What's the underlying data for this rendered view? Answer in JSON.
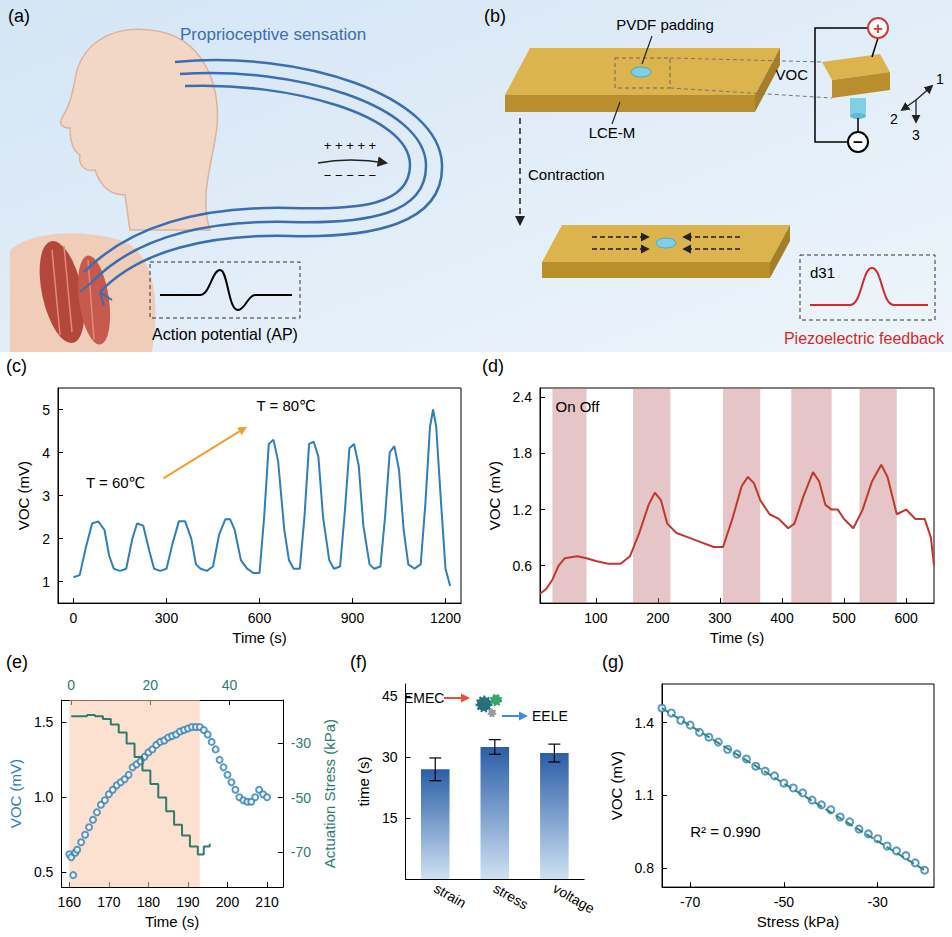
{
  "diagrams": {
    "a": {
      "label": "(a)",
      "title": "Proprioceptive sensation",
      "charges": {
        "positive": "+ + + + +",
        "negative": "− − − − −"
      },
      "signal_label": "Action potential (AP)"
    },
    "b": {
      "label": "(b)",
      "pad_label": "PVDF padding",
      "film_label": "LCE-M",
      "action": "Contraction",
      "voltage": "VOC",
      "plus": "+",
      "minus": "−",
      "axes": [
        "1",
        "2",
        "3"
      ],
      "mode": "d31",
      "feedback": "Piezoelectric feedback"
    }
  },
  "chart_data": [
    {
      "panel": "(c)",
      "type": "line",
      "color": "#2f7fb8",
      "x": [
        0,
        20,
        40,
        60,
        80,
        100,
        115,
        130,
        150,
        170,
        190,
        205,
        225,
        245,
        260,
        280,
        300,
        320,
        340,
        360,
        380,
        395,
        410,
        430,
        450,
        470,
        490,
        505,
        520,
        540,
        560,
        580,
        600,
        615,
        630,
        645,
        660,
        680,
        695,
        710,
        730,
        745,
        760,
        775,
        790,
        805,
        825,
        840,
        860,
        875,
        890,
        905,
        920,
        935,
        955,
        970,
        990,
        1005,
        1020,
        1035,
        1050,
        1065,
        1080,
        1100,
        1120,
        1135,
        1150,
        1160,
        1170,
        1185,
        1200,
        1215
      ],
      "values": [
        1.1,
        1.15,
        1.8,
        2.35,
        2.4,
        2.2,
        1.6,
        1.3,
        1.25,
        1.3,
        2.0,
        2.35,
        2.3,
        1.7,
        1.3,
        1.25,
        1.3,
        1.9,
        2.4,
        2.4,
        2.0,
        1.4,
        1.3,
        1.25,
        1.35,
        2.1,
        2.45,
        2.45,
        2.2,
        1.5,
        1.3,
        1.2,
        1.2,
        2.5,
        4.2,
        4.3,
        3.8,
        2.2,
        1.5,
        1.3,
        1.3,
        2.5,
        4.2,
        4.25,
        3.9,
        2.5,
        1.5,
        1.3,
        1.35,
        2.6,
        4.1,
        4.2,
        3.7,
        2.3,
        1.4,
        1.3,
        1.35,
        2.5,
        4.0,
        4.15,
        3.6,
        2.2,
        1.4,
        1.3,
        1.4,
        2.8,
        4.6,
        5.0,
        4.6,
        2.9,
        1.3,
        0.9
      ],
      "xlabel": "Time (s)",
      "ylabel": "VOC (mV)",
      "xlim": [
        -50,
        1250
      ],
      "xticks": [
        0,
        300,
        600,
        900,
        1200
      ],
      "ylim": [
        0.5,
        5.5
      ],
      "yticks": [
        1,
        2,
        3,
        4,
        5
      ],
      "annotations": [
        "T = 60℃",
        "T = 80℃"
      ]
    },
    {
      "panel": "(d)",
      "type": "line",
      "color": "#c0392b",
      "x": [
        10,
        20,
        30,
        40,
        50,
        70,
        85,
        100,
        120,
        140,
        155,
        170,
        185,
        195,
        205,
        215,
        230,
        250,
        270,
        290,
        305,
        320,
        335,
        345,
        355,
        365,
        380,
        395,
        410,
        420,
        435,
        450,
        460,
        470,
        480,
        490,
        500,
        515,
        530,
        545,
        560,
        570,
        585,
        600,
        615,
        630,
        640,
        645
      ],
      "values": [
        0.3,
        0.35,
        0.45,
        0.6,
        0.68,
        0.7,
        0.68,
        0.65,
        0.62,
        0.62,
        0.7,
        0.95,
        1.25,
        1.38,
        1.3,
        1.05,
        0.95,
        0.9,
        0.85,
        0.8,
        0.8,
        1.1,
        1.45,
        1.55,
        1.48,
        1.3,
        1.15,
        1.1,
        1.0,
        1.05,
        1.35,
        1.6,
        1.5,
        1.25,
        1.2,
        1.2,
        1.1,
        1.0,
        1.2,
        1.5,
        1.68,
        1.55,
        1.15,
        1.2,
        1.1,
        1.1,
        0.9,
        0.6
      ],
      "on_intervals": [
        [
          30,
          85
        ],
        [
          160,
          220
        ],
        [
          305,
          365
        ],
        [
          415,
          480
        ],
        [
          525,
          585
        ]
      ],
      "xlabel": "Time (s)",
      "ylabel": "VOC (mV)",
      "xlim": [
        10,
        645
      ],
      "xticks": [
        100,
        200,
        300,
        400,
        500,
        600
      ],
      "ylim": [
        0.2,
        2.5
      ],
      "yticks": [
        0.6,
        1.2,
        1.8,
        2.4
      ],
      "annotations": [
        "On Off"
      ]
    },
    {
      "panel": "(e)",
      "type": "scatter",
      "series": [
        {
          "type": "scatter",
          "color": "#2f7fb8",
          "marker": "emptyCircle",
          "axis": "y",
          "x": [
            160,
            160.5,
            161,
            161.5,
            162,
            163,
            164,
            165,
            166,
            167,
            168,
            169,
            170,
            171,
            172,
            173,
            174,
            175,
            176,
            177,
            178,
            179,
            180,
            181,
            182,
            183,
            184,
            185,
            186,
            187,
            188,
            189,
            190,
            191,
            192,
            193,
            194,
            195,
            196,
            197,
            198,
            199,
            200,
            201,
            202,
            203,
            204,
            205,
            206,
            207,
            208,
            209,
            210
          ],
          "values": [
            0.62,
            0.6,
            0.48,
            0.63,
            0.65,
            0.7,
            0.75,
            0.8,
            0.85,
            0.9,
            0.95,
            0.98,
            1.02,
            1.05,
            1.08,
            1.1,
            1.12,
            1.15,
            1.2,
            1.22,
            1.24,
            1.27,
            1.3,
            1.32,
            1.35,
            1.37,
            1.38,
            1.4,
            1.41,
            1.42,
            1.44,
            1.45,
            1.46,
            1.47,
            1.47,
            1.47,
            1.45,
            1.42,
            1.37,
            1.32,
            1.25,
            1.2,
            1.15,
            1.1,
            1.05,
            1.0,
            0.98,
            0.97,
            0.97,
            1.0,
            1.05,
            1.02,
            1.0
          ]
        },
        {
          "type": "line",
          "color": "#2e7d6c",
          "axis": "y2",
          "x": [
            0,
            2,
            4,
            6,
            8,
            10,
            12,
            14,
            16,
            18,
            20,
            22,
            24,
            26,
            28,
            30,
            32,
            33,
            33.5,
            35
          ],
          "values": [
            -20,
            -20,
            -19.5,
            -20,
            -21,
            -23,
            -26,
            -30,
            -35,
            -40,
            -45,
            -50,
            -55,
            -60,
            -64,
            -68,
            -71,
            -71,
            -68,
            -67
          ]
        }
      ],
      "shade": [
        160,
        193
      ],
      "xlabel": "Time (s)",
      "ylabel": "VOC (mV)",
      "y2label": "Actuation Stress (kPa)",
      "xlim": [
        158,
        214
      ],
      "xticks": [
        160,
        170,
        180,
        190,
        200,
        210
      ],
      "x2lim": [
        -2.5,
        53.5
      ],
      "x2ticks": [
        0,
        20,
        40
      ],
      "ylim": [
        0.4,
        1.65
      ],
      "yticks": [
        0.5,
        {
          "value": 1,
          "label": "1.0"
        },
        1.5
      ],
      "y2lim": [
        -83,
        -14
      ],
      "y2ticks": [
        -70,
        -50,
        -30
      ]
    },
    {
      "panel": "(f)",
      "type": "bar",
      "color": "#2b5ea6",
      "categories": [
        "strain",
        "stress",
        "voltage"
      ],
      "values": [
        27,
        32.5,
        31
      ],
      "errors": [
        2.8,
        1.8,
        2.2
      ],
      "ylabel": "time (s)",
      "ylim": [
        0,
        48
      ],
      "yticks": [
        15,
        30,
        45
      ],
      "annotations": [
        "EMEC",
        "EELE"
      ]
    },
    {
      "panel": "(g)",
      "type": "scatter",
      "color": "#2f7fb8",
      "marker": "emptyCircle",
      "x": [
        -76,
        -74,
        -72,
        -70,
        -68,
        -66,
        -64,
        -62,
        -60,
        -58,
        -56,
        -54,
        -52,
        -50,
        -48,
        -46,
        -44,
        -42,
        -40,
        -38,
        -36,
        -34,
        -32,
        -30,
        -28,
        -26,
        -24,
        -22,
        -20
      ],
      "values": [
        1.46,
        1.44,
        1.41,
        1.39,
        1.36,
        1.34,
        1.32,
        1.29,
        1.27,
        1.25,
        1.22,
        1.2,
        1.18,
        1.15,
        1.13,
        1.11,
        1.08,
        1.06,
        1.04,
        1.01,
        0.99,
        0.96,
        0.94,
        0.92,
        0.89,
        0.87,
        0.85,
        0.82,
        0.79
      ],
      "fit": {
        "type": "line",
        "color": "#2e8b74",
        "line_style": "dashed",
        "x": [
          -76,
          -20
        ],
        "values": [
          1.46,
          0.79
        ]
      },
      "xlabel": "Stress (kPa)",
      "ylabel": "VOC (mV)",
      "xlim": [
        -76,
        -18
      ],
      "xticks": [
        -70,
        -50,
        -30
      ],
      "ylim": [
        0.72,
        1.56
      ],
      "yticks": [
        0.8,
        1.1,
        1.4
      ],
      "annotations": [
        "R² = 0.990"
      ]
    }
  ]
}
